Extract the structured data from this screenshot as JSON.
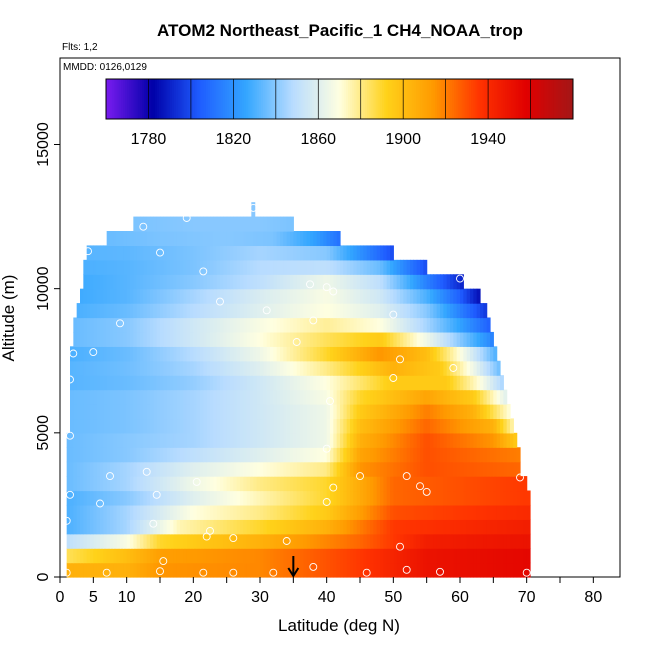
{
  "chart_data": {
    "type": "heatmap",
    "title": "ATOM2 Northeast_Pacific_1 CH4_NOAA_trop",
    "flights_label": "Flts: 1,2",
    "dates_label": "MMDD: 0126,0129",
    "xlabel": "Latitude (deg N)",
    "ylabel": "Altitude (m)",
    "xlim": [
      0,
      84
    ],
    "ylim": [
      0,
      18000
    ],
    "x_ticks": [
      0,
      5,
      10,
      20,
      30,
      40,
      50,
      60,
      70,
      80
    ],
    "y_ticks": [
      0,
      5000,
      10000,
      15000
    ],
    "colorbar": {
      "min": 1760,
      "max": 1980,
      "ticks": [
        1780,
        1820,
        1860,
        1900,
        1940
      ],
      "boundaries": [
        1760,
        1780,
        1800,
        1820,
        1840,
        1860,
        1880,
        1900,
        1920,
        1940,
        1960,
        1980
      ],
      "colors": [
        "#7a1cf0",
        "#0000a8",
        "#1f5cff",
        "#33a6ff",
        "#b8dcff",
        "#ffffe0",
        "#ffd21a",
        "#ff9a00",
        "#ff3300",
        "#e00000",
        "#a31717"
      ]
    },
    "arrow_marker_latitude": 35,
    "rows": [
      {
        "alt": 250,
        "lat_min": 1,
        "lat_max": 70.5,
        "anchors": [
          [
            1,
            1905
          ],
          [
            10,
            1905
          ],
          [
            15,
            1915
          ],
          [
            30,
            1918
          ],
          [
            45,
            1935
          ],
          [
            55,
            1950
          ],
          [
            70,
            1955
          ]
        ]
      },
      {
        "alt": 750,
        "lat_min": 1,
        "lat_max": 70.5,
        "anchors": [
          [
            1,
            1885
          ],
          [
            10,
            1900
          ],
          [
            15,
            1912
          ],
          [
            30,
            1918
          ],
          [
            45,
            1935
          ],
          [
            55,
            1950
          ],
          [
            70,
            1955
          ]
        ]
      },
      {
        "alt": 1250,
        "lat_min": 1,
        "lat_max": 70.5,
        "anchors": [
          [
            1,
            1850
          ],
          [
            10,
            1868
          ],
          [
            15,
            1890
          ],
          [
            30,
            1905
          ],
          [
            45,
            1925
          ],
          [
            55,
            1945
          ],
          [
            70,
            1950
          ]
        ]
      },
      {
        "alt": 1750,
        "lat_min": 1,
        "lat_max": 70.5,
        "anchors": [
          [
            1,
            1830
          ],
          [
            10,
            1845
          ],
          [
            18,
            1875
          ],
          [
            30,
            1890
          ],
          [
            40,
            1905
          ],
          [
            50,
            1935
          ],
          [
            70,
            1945
          ]
        ]
      },
      {
        "alt": 2250,
        "lat_min": 1,
        "lat_max": 70.5,
        "anchors": [
          [
            1,
            1830
          ],
          [
            10,
            1845
          ],
          [
            20,
            1870
          ],
          [
            30,
            1880
          ],
          [
            40,
            1895
          ],
          [
            50,
            1930
          ],
          [
            70,
            1940
          ]
        ]
      },
      {
        "alt": 2750,
        "lat_min": 1,
        "lat_max": 70.5,
        "anchors": [
          [
            1,
            1830
          ],
          [
            10,
            1840
          ],
          [
            20,
            1860
          ],
          [
            30,
            1875
          ],
          [
            40,
            1890
          ],
          [
            50,
            1925
          ],
          [
            70,
            1935
          ]
        ]
      },
      {
        "alt": 3250,
        "lat_min": 1,
        "lat_max": 70,
        "anchors": [
          [
            1,
            1835
          ],
          [
            10,
            1845
          ],
          [
            20,
            1865
          ],
          [
            30,
            1880
          ],
          [
            40,
            1890
          ],
          [
            50,
            1925
          ],
          [
            70,
            1935
          ]
        ]
      },
      {
        "alt": 3750,
        "lat_min": 1,
        "lat_max": 69,
        "anchors": [
          [
            1,
            1835
          ],
          [
            10,
            1845
          ],
          [
            20,
            1860
          ],
          [
            30,
            1870
          ],
          [
            40,
            1880
          ],
          [
            45,
            1915
          ],
          [
            55,
            1930
          ],
          [
            69,
            1925
          ]
        ]
      },
      {
        "alt": 4250,
        "lat_min": 1,
        "lat_max": 69,
        "anchors": [
          [
            1,
            1835
          ],
          [
            10,
            1840
          ],
          [
            20,
            1850
          ],
          [
            30,
            1860
          ],
          [
            40,
            1870
          ],
          [
            45,
            1910
          ],
          [
            55,
            1930
          ],
          [
            69,
            1920
          ]
        ]
      },
      {
        "alt": 4750,
        "lat_min": 1,
        "lat_max": 68.5,
        "anchors": [
          [
            1,
            1835
          ],
          [
            10,
            1840
          ],
          [
            20,
            1845
          ],
          [
            30,
            1855
          ],
          [
            40,
            1865
          ],
          [
            45,
            1905
          ],
          [
            55,
            1930
          ],
          [
            65,
            1915
          ],
          [
            68.5,
            1895
          ]
        ]
      },
      {
        "alt": 5250,
        "lat_min": 1.5,
        "lat_max": 68,
        "anchors": [
          [
            1.5,
            1835
          ],
          [
            10,
            1838
          ],
          [
            20,
            1845
          ],
          [
            30,
            1855
          ],
          [
            40,
            1865
          ],
          [
            45,
            1900
          ],
          [
            55,
            1925
          ],
          [
            65,
            1905
          ],
          [
            68,
            1875
          ]
        ]
      },
      {
        "alt": 5750,
        "lat_min": 1.5,
        "lat_max": 67.5,
        "anchors": [
          [
            1.5,
            1835
          ],
          [
            10,
            1838
          ],
          [
            20,
            1845
          ],
          [
            30,
            1855
          ],
          [
            40,
            1865
          ],
          [
            45,
            1895
          ],
          [
            55,
            1920
          ],
          [
            62,
            1905
          ],
          [
            67.5,
            1870
          ]
        ]
      },
      {
        "alt": 6250,
        "lat_min": 1.5,
        "lat_max": 67,
        "anchors": [
          [
            1.5,
            1835
          ],
          [
            10,
            1838
          ],
          [
            20,
            1845
          ],
          [
            30,
            1855
          ],
          [
            40,
            1868
          ],
          [
            45,
            1890
          ],
          [
            55,
            1910
          ],
          [
            62,
            1895
          ],
          [
            67,
            1860
          ]
        ]
      },
      {
        "alt": 6750,
        "lat_min": 1.5,
        "lat_max": 66.5,
        "anchors": [
          [
            1.5,
            1832
          ],
          [
            10,
            1835
          ],
          [
            20,
            1842
          ],
          [
            30,
            1855
          ],
          [
            40,
            1870
          ],
          [
            50,
            1895
          ],
          [
            58,
            1895
          ],
          [
            63,
            1870
          ],
          [
            66.5,
            1845
          ]
        ]
      },
      {
        "alt": 7250,
        "lat_min": 1.5,
        "lat_max": 66,
        "anchors": [
          [
            1.5,
            1832
          ],
          [
            10,
            1836
          ],
          [
            20,
            1845
          ],
          [
            30,
            1860
          ],
          [
            40,
            1880
          ],
          [
            50,
            1905
          ],
          [
            57,
            1895
          ],
          [
            62,
            1865
          ],
          [
            66,
            1835
          ]
        ]
      },
      {
        "alt": 7750,
        "lat_min": 1.5,
        "lat_max": 65.5,
        "anchors": [
          [
            1.5,
            1830
          ],
          [
            10,
            1835
          ],
          [
            20,
            1848
          ],
          [
            30,
            1865
          ],
          [
            40,
            1890
          ],
          [
            48,
            1915
          ],
          [
            55,
            1900
          ],
          [
            60,
            1870
          ],
          [
            65.5,
            1830
          ]
        ]
      },
      {
        "alt": 8250,
        "lat_min": 2,
        "lat_max": 65,
        "anchors": [
          [
            2,
            1835
          ],
          [
            10,
            1840
          ],
          [
            20,
            1855
          ],
          [
            30,
            1870
          ],
          [
            40,
            1885
          ],
          [
            48,
            1895
          ],
          [
            55,
            1865
          ],
          [
            60,
            1840
          ],
          [
            65,
            1815
          ]
        ]
      },
      {
        "alt": 8750,
        "lat_min": 2,
        "lat_max": 64.5,
        "anchors": [
          [
            2,
            1835
          ],
          [
            10,
            1840
          ],
          [
            20,
            1855
          ],
          [
            30,
            1868
          ],
          [
            40,
            1878
          ],
          [
            48,
            1870
          ],
          [
            55,
            1845
          ],
          [
            60,
            1825
          ],
          [
            64.5,
            1805
          ]
        ]
      },
      {
        "alt": 9250,
        "lat_min": 2.5,
        "lat_max": 64,
        "anchors": [
          [
            2.5,
            1830
          ],
          [
            10,
            1835
          ],
          [
            20,
            1848
          ],
          [
            30,
            1860
          ],
          [
            40,
            1870
          ],
          [
            48,
            1860
          ],
          [
            55,
            1840
          ],
          [
            60,
            1815
          ],
          [
            64,
            1795
          ]
        ]
      },
      {
        "alt": 9750,
        "lat_min": 3,
        "lat_max": 63,
        "anchors": [
          [
            3,
            1828
          ],
          [
            10,
            1832
          ],
          [
            20,
            1845
          ],
          [
            30,
            1858
          ],
          [
            40,
            1868
          ],
          [
            48,
            1855
          ],
          [
            55,
            1830
          ],
          [
            60,
            1805
          ],
          [
            63,
            1785
          ]
        ]
      },
      {
        "alt": 10250,
        "lat_min": 3.5,
        "lat_max": 60.5,
        "anchors": [
          [
            3.5,
            1828
          ],
          [
            10,
            1832
          ],
          [
            20,
            1840
          ],
          [
            30,
            1850
          ],
          [
            40,
            1865
          ],
          [
            48,
            1850
          ],
          [
            55,
            1815
          ],
          [
            60.5,
            1790
          ]
        ]
      },
      {
        "alt": 10750,
        "lat_min": 3.5,
        "lat_max": 55,
        "anchors": [
          [
            3.5,
            1830
          ],
          [
            10,
            1832
          ],
          [
            20,
            1838
          ],
          [
            30,
            1848
          ],
          [
            40,
            1850
          ],
          [
            48,
            1835
          ],
          [
            55,
            1800
          ]
        ]
      },
      {
        "alt": 11250,
        "lat_min": 4,
        "lat_max": 50,
        "anchors": [
          [
            4,
            1832
          ],
          [
            10,
            1833
          ],
          [
            20,
            1838
          ],
          [
            30,
            1845
          ],
          [
            40,
            1840
          ],
          [
            45,
            1820
          ],
          [
            50,
            1800
          ]
        ]
      },
      {
        "alt": 11750,
        "lat_min": 7,
        "lat_max": 42,
        "anchors": [
          [
            7,
            1835
          ],
          [
            15,
            1838
          ],
          [
            25,
            1840
          ],
          [
            32,
            1838
          ],
          [
            38,
            1825
          ],
          [
            42,
            1810
          ]
        ]
      },
      {
        "alt": 12250,
        "lat_min": 11,
        "lat_max": 35,
        "anchors": [
          [
            11,
            1838
          ],
          [
            20,
            1840
          ],
          [
            30,
            1840
          ],
          [
            35,
            1838
          ]
        ]
      },
      {
        "alt": 12750,
        "lat_min": 28.7,
        "lat_max": 29.2,
        "anchors": [
          [
            28.7,
            1840
          ],
          [
            29.2,
            1840
          ]
        ]
      }
    ],
    "samples": [
      [
        1,
        150
      ],
      [
        7,
        150
      ],
      [
        15,
        200
      ],
      [
        21.5,
        150
      ],
      [
        26,
        150
      ],
      [
        32,
        150
      ],
      [
        38,
        350
      ],
      [
        46,
        150
      ],
      [
        52,
        250
      ],
      [
        57,
        180
      ],
      [
        70,
        150
      ],
      [
        15.5,
        550
      ],
      [
        22,
        1400
      ],
      [
        26,
        1350
      ],
      [
        34,
        1250
      ],
      [
        51,
        1050
      ],
      [
        22.5,
        1600
      ],
      [
        1,
        1950
      ],
      [
        6,
        2550
      ],
      [
        14,
        1850
      ],
      [
        40,
        2600
      ],
      [
        55,
        2950
      ],
      [
        1.5,
        2850
      ],
      [
        14.5,
        2850
      ],
      [
        20.5,
        3300
      ],
      [
        41,
        3100
      ],
      [
        54,
        3150
      ],
      [
        7.5,
        3500
      ],
      [
        13,
        3650
      ],
      [
        45,
        3500
      ],
      [
        52,
        3500
      ],
      [
        69,
        3450
      ],
      [
        40,
        4450
      ],
      [
        1.5,
        4900
      ],
      [
        40.5,
        6100
      ],
      [
        1.5,
        6850
      ],
      [
        50,
        6900
      ],
      [
        51,
        7550
      ],
      [
        59,
        7250
      ],
      [
        2,
        7750
      ],
      [
        5,
        7800
      ],
      [
        35.5,
        8150
      ],
      [
        9,
        8800
      ],
      [
        38,
        8900
      ],
      [
        31,
        9250
      ],
      [
        50,
        9100
      ],
      [
        24,
        9550
      ],
      [
        40,
        10050
      ],
      [
        41,
        9900
      ],
      [
        37.5,
        10150
      ],
      [
        60,
        10350
      ],
      [
        21.5,
        10600
      ],
      [
        15,
        11250
      ],
      [
        3,
        11300
      ],
      [
        4.2,
        11300
      ],
      [
        12.5,
        12150
      ],
      [
        19,
        12450
      ],
      [
        29,
        12800
      ]
    ]
  }
}
